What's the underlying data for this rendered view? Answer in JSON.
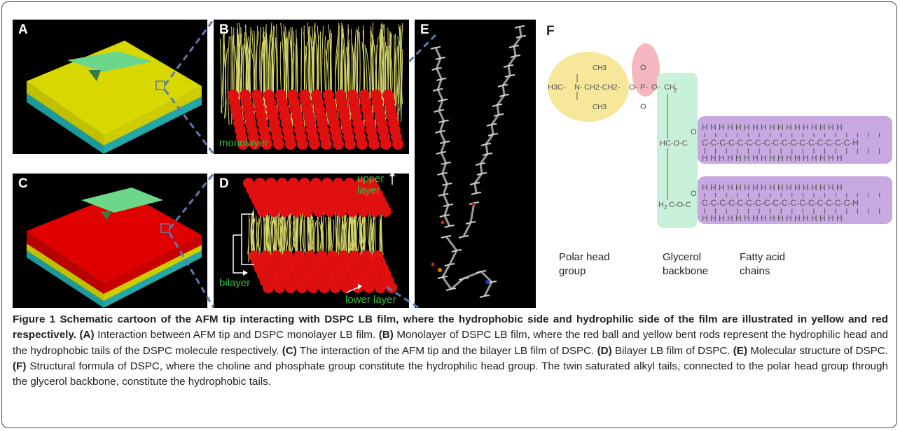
{
  "panels": {
    "A": {
      "label": "A"
    },
    "B": {
      "label": "B",
      "annotation": "monolayer"
    },
    "C": {
      "label": "C"
    },
    "D": {
      "label": "D",
      "upper": "upper layer",
      "bilayer": "bilayer",
      "lower": "lower layer"
    },
    "E": {
      "label": "E"
    },
    "F": {
      "label": "F"
    }
  },
  "structure": {
    "head_groups": {
      "methyl_top": "CH3",
      "methyl_left": "H3C",
      "nitrogen": "N",
      "methylene": "CH2CH2",
      "oxygen": "O",
      "phosphorus": "P"
    },
    "labels": {
      "polar_1": "Polar head",
      "polar_2": "group",
      "glycerol_1": "Glycerol",
      "glycerol_2": "backbone",
      "fatty_1": "Fatty acid",
      "fatty_2": "chains"
    }
  },
  "caption": {
    "title": "Figure 1 Schematic cartoon of the AFM tip interacting with DSPC LB film, where the hydrophobic side and hydrophilic side of the film are illustrated in yellow and red respectively.",
    "a_tag": "(A)",
    "a_text": " Interaction between AFM tip and DSPC monolayer LB film. ",
    "b_tag": "(B)",
    "b_text": " Monolayer of DSPC LB film, where the red ball and yellow bent rods represent the hydrophilic head and the hydrophobic tails of the DSPC molecule respectively. ",
    "c_tag": "(C)",
    "c_text": " The interaction of the AFM tip and the bilayer LB film of DSPC. ",
    "d_tag": "(D)",
    "d_text": " Bilayer LB film of DSPC. ",
    "e_tag": "(E)",
    "e_text": " Molecular structure of DSPC. ",
    "f_tag": "(F)",
    "f_text": " Structural formula of DSPC, where the choline and phosphate group constitute the hydrophilic head group. The twin saturated alkyl tails, connected to the polar head group through the glycerol backbone, constitute the hydrophobic tails."
  },
  "colors": {
    "yellow": "#d8d800",
    "red": "#e00000",
    "cyan": "#22b8b8",
    "tip_green": "#6cd68a",
    "dash_blue": "#5a7bb0",
    "head_yellow": "#f7e79a",
    "head_pink": "#f5b7bf",
    "glycerol_green": "#c9f0da",
    "chain_purple": "#c8a8e0"
  }
}
